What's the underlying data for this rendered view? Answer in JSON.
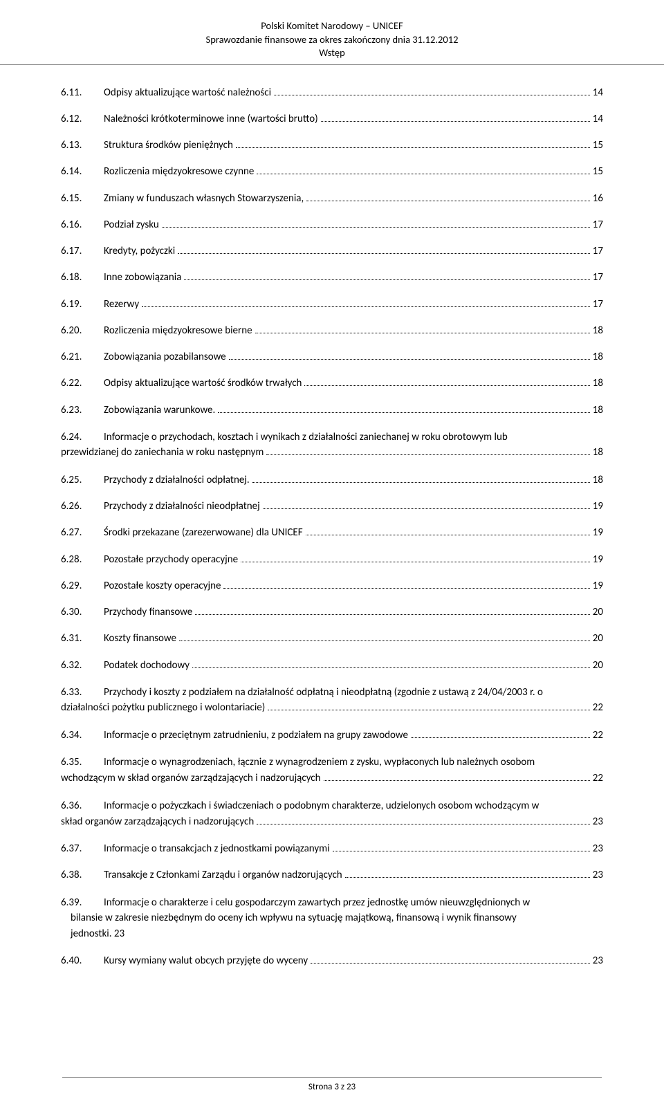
{
  "header": {
    "line1": "Polski Komitet Narodowy – UNICEF",
    "line2": "Sprawozdanie finansowe za okres zakończony dnia 31.12.2012",
    "line3": "Wstęp"
  },
  "entries": [
    {
      "num": "6.11.",
      "text": "Odpisy aktualizujące wartość należności",
      "page": "14"
    },
    {
      "num": "6.12.",
      "text": "Należności krótkoterminowe inne (wartości brutto)",
      "page": "14"
    },
    {
      "num": "6.13.",
      "text": "Struktura środków pieniężnych",
      "page": "15"
    },
    {
      "num": "6.14.",
      "text": "Rozliczenia międzyokresowe czynne",
      "page": "15"
    },
    {
      "num": "6.15.",
      "text": "Zmiany w funduszach własnych Stowarzyszenia,",
      "page": "16"
    },
    {
      "num": "6.16.",
      "text": "Podział zysku",
      "page": "17"
    },
    {
      "num": "6.17.",
      "text": "Kredyty, pożyczki",
      "page": "17"
    },
    {
      "num": "6.18.",
      "text": "Inne zobowiązania",
      "page": "17"
    },
    {
      "num": "6.19.",
      "text": "Rezerwy",
      "page": "17"
    },
    {
      "num": "6.20.",
      "text": "Rozliczenia międzyokresowe bierne",
      "page": "18"
    },
    {
      "num": "6.21.",
      "text": "Zobowiązania pozabilansowe",
      "page": "18"
    },
    {
      "num": "6.22.",
      "text": "Odpisy aktualizujące wartość środków trwałych",
      "page": "18"
    },
    {
      "num": "6.23.",
      "text": "Zobowiązania warunkowe.",
      "page": "18"
    },
    {
      "num": "6.24.",
      "wrap": true,
      "line1": "Informacje o przychodach, kosztach i wynikach z działalności zaniechanej w roku obrotowym lub",
      "line2": "przewidzianej do zaniechania w roku następnym",
      "page": "18"
    },
    {
      "num": "6.25.",
      "text": "Przychody z działalności odpłatnej.",
      "page": "18"
    },
    {
      "num": "6.26.",
      "text": "Przychody z działalności nieodpłatnej",
      "page": "19"
    },
    {
      "num": "6.27.",
      "text": "Środki przekazane (zarezerwowane) dla UNICEF",
      "page": "19"
    },
    {
      "num": "6.28.",
      "text": "Pozostałe przychody operacyjne",
      "page": "19"
    },
    {
      "num": "6.29.",
      "text": "Pozostałe koszty operacyjne",
      "page": "19"
    },
    {
      "num": "6.30.",
      "text": "Przychody finansowe",
      "page": "20"
    },
    {
      "num": "6.31.",
      "text": "Koszty finansowe",
      "page": "20"
    },
    {
      "num": "6.32.",
      "text": "Podatek dochodowy",
      "page": "20"
    },
    {
      "num": "6.33.",
      "wrap": true,
      "line1": "Przychody i koszty z podziałem na działalność odpłatną i nieodpłatną (zgodnie z ustawą z 24/04/2003 r. o",
      "line2": "działalności pożytku publicznego i wolontariacie)",
      "page": "22",
      "noIndent": true
    },
    {
      "num": "6.34.",
      "text": "Informacje o przeciętnym zatrudnieniu, z podziałem na grupy zawodowe",
      "page": "22"
    },
    {
      "num": "6.35.",
      "wrap": true,
      "line1": "Informacje o wynagrodzeniach, łącznie z wynagrodzeniem z zysku, wypłaconych lub należnych osobom",
      "line2": "wchodzącym w skład organów zarządzających i nadzorujących",
      "page": "22",
      "noIndent": true
    },
    {
      "num": "6.36.",
      "wrap": true,
      "line1": "Informacje o pożyczkach i świadczeniach o podobnym charakterze, udzielonych osobom wchodzącym w",
      "line2": "skład organów zarządzających i nadzorujących",
      "page": "23",
      "noIndent": true
    },
    {
      "num": "6.37.",
      "text": "Informacje o transakcjach z jednostkami powiązanymi",
      "page": "23"
    },
    {
      "num": "6.38.",
      "text": "Transakcje z Członkami Zarządu i organów nadzorujących",
      "page": "23"
    },
    {
      "num": "6.39.",
      "wrap": true,
      "threeline": true,
      "line1": "Informacje o charakterze i celu gospodarczym zawartych przez jednostkę umów nieuwzględnionych w",
      "line2": "bilansie w zakresie niezbędnym do oceny ich wpływu na sytuację majątkową, finansową i wynik finansowy",
      "line3": "jednostki. 23"
    },
    {
      "num": "6.40.",
      "text": "Kursy wymiany walut obcych przyjęte do wyceny",
      "page": "23"
    }
  ],
  "footer": {
    "text": "Strona 3 z 23"
  }
}
